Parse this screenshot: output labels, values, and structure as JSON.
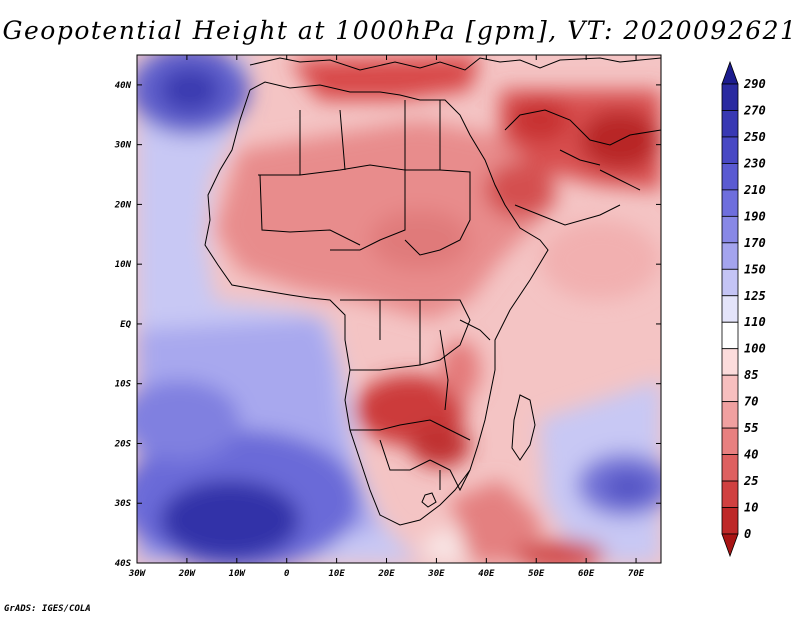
{
  "title": "Geopotential Height at 1000hPa [gpm], VT: 2020092621",
  "credit": "GrADS: IGES/COLA",
  "map": {
    "variable": "Geopotential Height",
    "level": "1000hPa",
    "units": "gpm",
    "valid_time": "2020092621",
    "region": "Africa",
    "lon_range": [
      -30,
      75
    ],
    "lat_range": [
      -40,
      45
    ],
    "lat_labels": [
      "40N",
      "30N",
      "20N",
      "10N",
      "EQ",
      "10S",
      "20S",
      "30S",
      "40S"
    ],
    "lon_labels": [
      "30W",
      "20W",
      "10W",
      "0",
      "10E",
      "20E",
      "30E",
      "40E",
      "50E",
      "60E",
      "70E"
    ]
  },
  "colorbar": {
    "levels": [
      "290",
      "270",
      "250",
      "230",
      "210",
      "190",
      "170",
      "150",
      "125",
      "110",
      "100",
      "85",
      "70",
      "55",
      "40",
      "25",
      "10",
      "0"
    ],
    "colors": [
      "#1c1c8e",
      "#2a2aa0",
      "#3838b3",
      "#4848c4",
      "#5a5ad2",
      "#6e6edd",
      "#8888e6",
      "#a4a4ee",
      "#c4c4f5",
      "#e4e4fa",
      "#ffffff",
      "#fcdcdc",
      "#f7bfbf",
      "#f0a0a0",
      "#e88080",
      "#de6060",
      "#d04040",
      "#be2828",
      "#a81414"
    ]
  }
}
